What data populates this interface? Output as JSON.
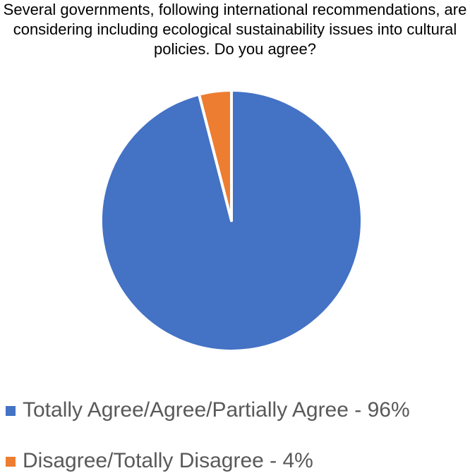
{
  "chart_data": {
    "type": "pie",
    "title": "Several governments, following international recommendations, are considering including ecological sustainability issues into cultural policies. Do you agree?",
    "categories": [
      "Totally Agree/Agree/Partially Agree - 96%",
      "Disagree/Totally Disagree - 4%"
    ],
    "values": [
      96,
      4
    ],
    "colors": [
      "#4472c4",
      "#ed7d31"
    ],
    "legend": "bottom"
  }
}
